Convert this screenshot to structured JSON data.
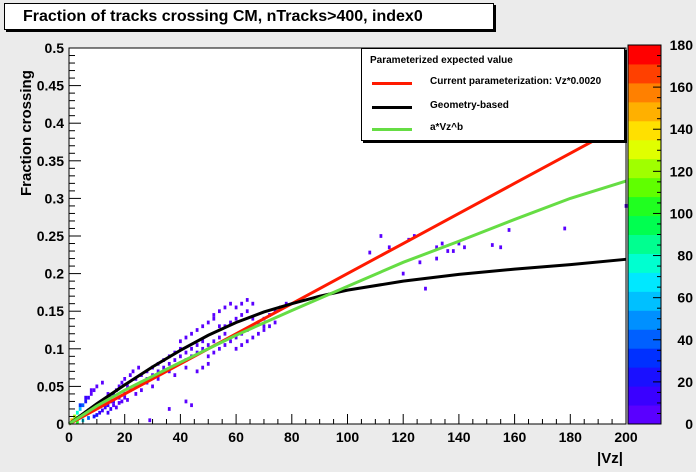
{
  "title": "Fraction of tracks crossing CM, nTracks>400, index0",
  "chart_data": {
    "type": "heatmap",
    "xlabel": "|Vz|",
    "ylabel": "Fraction crossing",
    "xlim": [
      0,
      200
    ],
    "ylim": [
      0,
      0.5
    ],
    "x_ticks": [
      "0",
      "20",
      "40",
      "60",
      "80",
      "100",
      "120",
      "140",
      "160",
      "180",
      "200"
    ],
    "y_ticks": [
      "0",
      "0.05",
      "0.1",
      "0.15",
      "0.2",
      "0.25",
      "0.3",
      "0.35",
      "0.4",
      "0.45",
      "0.5"
    ],
    "z_ticks": [
      "0",
      "20",
      "40",
      "60",
      "80",
      "100",
      "120",
      "140",
      "160",
      "180"
    ],
    "zlim": [
      0,
      180
    ],
    "colors": {
      "frame": "#ebebeb",
      "plot_bg": "#ffffff",
      "palette": [
        "#5a00ff",
        "#3a00ff",
        "#1a10ff",
        "#0030ff",
        "#0060ff",
        "#0090ff",
        "#00c0ff",
        "#00e8ff",
        "#00ffd0",
        "#00ff90",
        "#00ff50",
        "#20ff20",
        "#60ff00",
        "#a0ff00",
        "#e0ff00",
        "#ffe000",
        "#ffb000",
        "#ff8000",
        "#ff4000",
        "#ff0000"
      ]
    },
    "legend": {
      "header": "Parameterized expected value",
      "position": "top-right",
      "entries": [
        {
          "label": "Current parameterization: Vz*0.0020",
          "color": "#ff1a00"
        },
        {
          "label": "Geometry-based",
          "color": "#000000"
        },
        {
          "label": "a*Vz^b",
          "color": "#66dd44"
        }
      ]
    },
    "series": [
      {
        "label": "Current parameterization: Vz*0.0020",
        "color": "#ff1a00",
        "x": [
          0,
          10,
          20,
          40,
          60,
          80,
          100,
          120,
          140,
          160,
          180,
          200
        ],
        "y": [
          0,
          0.02,
          0.04,
          0.08,
          0.12,
          0.16,
          0.2,
          0.24,
          0.28,
          0.32,
          0.36,
          0.4
        ]
      },
      {
        "label": "Geometry-based",
        "color": "#000000",
        "x": [
          0,
          10,
          20,
          30,
          40,
          50,
          60,
          70,
          80,
          90,
          100,
          120,
          140,
          160,
          180,
          200
        ],
        "y": [
          0,
          0.027,
          0.052,
          0.076,
          0.098,
          0.118,
          0.135,
          0.149,
          0.16,
          0.17,
          0.178,
          0.19,
          0.199,
          0.206,
          0.212,
          0.219
        ]
      },
      {
        "label": "a*Vz^b",
        "color": "#66dd44",
        "x": [
          0,
          5,
          10,
          20,
          40,
          60,
          80,
          100,
          120,
          140,
          160,
          180,
          200
        ],
        "y": [
          0,
          0.012,
          0.024,
          0.045,
          0.082,
          0.118,
          0.151,
          0.183,
          0.215,
          0.243,
          0.272,
          0.3,
          0.323
        ]
      }
    ],
    "cells": [
      [
        1,
        0.005,
        150
      ],
      [
        2,
        0.005,
        120
      ],
      [
        3,
        0.008,
        110
      ],
      [
        4,
        0.01,
        90
      ],
      [
        5,
        0.012,
        80
      ],
      [
        6,
        0.015,
        60
      ],
      [
        7,
        0.018,
        50
      ],
      [
        8,
        0.02,
        40
      ],
      [
        2,
        0.01,
        120
      ],
      [
        3,
        0.015,
        80
      ],
      [
        4,
        0.02,
        60
      ],
      [
        5,
        0.025,
        40
      ],
      [
        6,
        0.03,
        20
      ],
      [
        7,
        0.035,
        10
      ],
      [
        8,
        0.04,
        8
      ],
      [
        9,
        0.045,
        6
      ],
      [
        3,
        0.003,
        100
      ],
      [
        5,
        0.005,
        70
      ],
      [
        7,
        0.008,
        40
      ],
      [
        9,
        0.01,
        25
      ],
      [
        10,
        0.012,
        20
      ],
      [
        11,
        0.015,
        15
      ],
      [
        12,
        0.018,
        12
      ],
      [
        13,
        0.022,
        10
      ],
      [
        4,
        0.025,
        30
      ],
      [
        6,
        0.035,
        15
      ],
      [
        8,
        0.045,
        8
      ],
      [
        10,
        0.05,
        6
      ],
      [
        12,
        0.055,
        4
      ],
      [
        14,
        0.04,
        8
      ],
      [
        15,
        0.035,
        10
      ],
      [
        16,
        0.03,
        12
      ],
      [
        10,
        0.025,
        25
      ],
      [
        11,
        0.028,
        20
      ],
      [
        12,
        0.03,
        18
      ],
      [
        13,
        0.032,
        15
      ],
      [
        14,
        0.025,
        15
      ],
      [
        15,
        0.03,
        12
      ],
      [
        16,
        0.04,
        10
      ],
      [
        17,
        0.045,
        8
      ],
      [
        18,
        0.05,
        8
      ],
      [
        19,
        0.055,
        6
      ],
      [
        20,
        0.06,
        6
      ],
      [
        21,
        0.05,
        6
      ],
      [
        22,
        0.065,
        5
      ],
      [
        23,
        0.07,
        5
      ],
      [
        24,
        0.06,
        4
      ],
      [
        25,
        0.075,
        4
      ],
      [
        18,
        0.035,
        6
      ],
      [
        20,
        0.04,
        5
      ],
      [
        22,
        0.045,
        5
      ],
      [
        24,
        0.05,
        4
      ],
      [
        26,
        0.055,
        4
      ],
      [
        28,
        0.06,
        4
      ],
      [
        30,
        0.065,
        4
      ],
      [
        32,
        0.07,
        4
      ],
      [
        26,
        0.065,
        4
      ],
      [
        28,
        0.07,
        4
      ],
      [
        30,
        0.075,
        4
      ],
      [
        32,
        0.08,
        5
      ],
      [
        34,
        0.085,
        5
      ],
      [
        36,
        0.09,
        5
      ],
      [
        38,
        0.095,
        6
      ],
      [
        40,
        0.1,
        8
      ],
      [
        34,
        0.075,
        4
      ],
      [
        36,
        0.08,
        4
      ],
      [
        38,
        0.085,
        5
      ],
      [
        40,
        0.09,
        5
      ],
      [
        42,
        0.095,
        6
      ],
      [
        44,
        0.1,
        6
      ],
      [
        46,
        0.105,
        8
      ],
      [
        48,
        0.11,
        8
      ],
      [
        42,
        0.085,
        4
      ],
      [
        44,
        0.09,
        5
      ],
      [
        46,
        0.095,
        5
      ],
      [
        48,
        0.1,
        5
      ],
      [
        50,
        0.105,
        6
      ],
      [
        52,
        0.11,
        6
      ],
      [
        54,
        0.115,
        8
      ],
      [
        56,
        0.12,
        8
      ],
      [
        40,
        0.11,
        4
      ],
      [
        42,
        0.115,
        4
      ],
      [
        44,
        0.12,
        4
      ],
      [
        46,
        0.125,
        5
      ],
      [
        48,
        0.13,
        5
      ],
      [
        50,
        0.135,
        5
      ],
      [
        52,
        0.14,
        5
      ],
      [
        54,
        0.13,
        6
      ],
      [
        50,
        0.09,
        4
      ],
      [
        52,
        0.095,
        4
      ],
      [
        54,
        0.1,
        5
      ],
      [
        56,
        0.105,
        5
      ],
      [
        58,
        0.11,
        6
      ],
      [
        60,
        0.115,
        6
      ],
      [
        62,
        0.12,
        8
      ],
      [
        64,
        0.125,
        6
      ],
      [
        56,
        0.13,
        4
      ],
      [
        58,
        0.135,
        4
      ],
      [
        60,
        0.14,
        5
      ],
      [
        62,
        0.145,
        4
      ],
      [
        64,
        0.15,
        4
      ],
      [
        66,
        0.14,
        4
      ],
      [
        68,
        0.135,
        5
      ],
      [
        70,
        0.13,
        5
      ],
      [
        52,
        0.145,
        3
      ],
      [
        54,
        0.15,
        3
      ],
      [
        56,
        0.155,
        3
      ],
      [
        58,
        0.16,
        3
      ],
      [
        60,
        0.155,
        3
      ],
      [
        62,
        0.16,
        3
      ],
      [
        64,
        0.165,
        3
      ],
      [
        66,
        0.16,
        3
      ],
      [
        60,
        0.1,
        3
      ],
      [
        62,
        0.105,
        3
      ],
      [
        64,
        0.11,
        3
      ],
      [
        66,
        0.115,
        3
      ],
      [
        68,
        0.12,
        4
      ],
      [
        70,
        0.125,
        4
      ],
      [
        72,
        0.13,
        4
      ],
      [
        74,
        0.135,
        3
      ],
      [
        70,
        0.14,
        3
      ],
      [
        72,
        0.145,
        3
      ],
      [
        74,
        0.15,
        3
      ],
      [
        76,
        0.155,
        3
      ],
      [
        78,
        0.16,
        3
      ],
      [
        48,
        0.075,
        3
      ],
      [
        50,
        0.08,
        3
      ],
      [
        46,
        0.07,
        3
      ],
      [
        30,
        0.05,
        3
      ],
      [
        28,
        0.055,
        3
      ],
      [
        26,
        0.045,
        3
      ],
      [
        24,
        0.04,
        3
      ],
      [
        32,
        0.06,
        3
      ],
      [
        36,
        0.07,
        3
      ],
      [
        38,
        0.065,
        3
      ],
      [
        42,
        0.075,
        3
      ],
      [
        14,
        0.015,
        12
      ],
      [
        15,
        0.02,
        10
      ],
      [
        16,
        0.025,
        8
      ],
      [
        17,
        0.022,
        8
      ],
      [
        18,
        0.028,
        6
      ],
      [
        19,
        0.03,
        6
      ],
      [
        20,
        0.035,
        5
      ],
      [
        21,
        0.032,
        5
      ],
      [
        29,
        0.005,
        3
      ],
      [
        42,
        0.03,
        3
      ],
      [
        44,
        0.025,
        3
      ],
      [
        36,
        0.02,
        3
      ],
      [
        108,
        0.228,
        3
      ],
      [
        112,
        0.25,
        3
      ],
      [
        115,
        0.235,
        3
      ],
      [
        120,
        0.2,
        3
      ],
      [
        124,
        0.25,
        3
      ],
      [
        126,
        0.215,
        3
      ],
      [
        132,
        0.235,
        3
      ],
      [
        128,
        0.18,
        3
      ],
      [
        132,
        0.22,
        3
      ],
      [
        134,
        0.24,
        3
      ],
      [
        136,
        0.23,
        3
      ],
      [
        138,
        0.23,
        3
      ],
      [
        142,
        0.235,
        3
      ],
      [
        152,
        0.238,
        3
      ],
      [
        140,
        0.24,
        3
      ],
      [
        155,
        0.235,
        3
      ],
      [
        158,
        0.258,
        3
      ],
      [
        178,
        0.26,
        3
      ],
      [
        200,
        0.29,
        3
      ],
      [
        122,
        0.245,
        3
      ]
    ]
  }
}
